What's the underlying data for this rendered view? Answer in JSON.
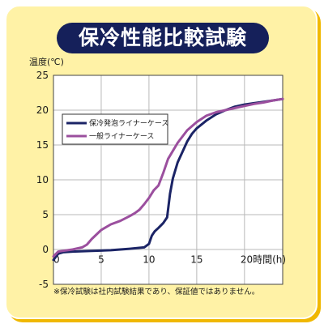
{
  "title": "保冷性能比較試験",
  "footnote": "※保冷試験は社内試験結果であり、保証値ではありません。",
  "colors": {
    "navy": "#1b2466",
    "purple": "#9b4f9e",
    "card": "#fff2a6",
    "grid": "#b9b9b9"
  },
  "chart_data": {
    "type": "line",
    "ylabel": "温度(℃)",
    "xlabel": "時間(h)",
    "xlim": [
      0,
      24
    ],
    "ylim": [
      -5,
      25
    ],
    "xticks": [
      0,
      5,
      10,
      15,
      20
    ],
    "xtick_labels": [
      "0",
      "5",
      "10",
      "15",
      "20時間(h)"
    ],
    "yticks": [
      -5,
      0,
      5,
      10,
      15,
      20,
      25
    ],
    "grid": true,
    "legend_position": "upper-left",
    "series": [
      {
        "name": "保冷発泡ライナーケース",
        "color": "#1b2466",
        "x": [
          0,
          0.5,
          1,
          2,
          4,
          6,
          8,
          9.5,
          10,
          10.3,
          10.6,
          11,
          11.5,
          11.9,
          12.2,
          12.5,
          13,
          13.5,
          14,
          14.5,
          15,
          16,
          17,
          18,
          19,
          20,
          21,
          22,
          23,
          24
        ],
        "y": [
          -1.5,
          -0.6,
          -0.4,
          -0.3,
          -0.2,
          -0.1,
          0.1,
          0.3,
          0.8,
          2.0,
          2.6,
          3.1,
          3.8,
          4.6,
          8.0,
          10.2,
          12.5,
          14.0,
          15.5,
          16.6,
          17.4,
          18.5,
          19.4,
          20.0,
          20.5,
          20.8,
          21.0,
          21.2,
          21.4,
          21.6
        ]
      },
      {
        "name": "一般ライナーケース",
        "color": "#9b4f9e",
        "x": [
          0,
          0.5,
          1,
          2,
          3,
          3.5,
          4,
          5,
          6,
          7,
          8,
          8.5,
          9,
          9.5,
          10,
          10.5,
          11,
          11.5,
          12,
          13,
          14,
          15,
          16,
          17,
          18,
          19,
          20,
          21,
          22,
          23,
          24
        ],
        "y": [
          -1.0,
          -0.3,
          -0.2,
          0.0,
          0.3,
          0.7,
          1.5,
          2.8,
          3.6,
          4.1,
          4.8,
          5.2,
          5.7,
          6.5,
          7.4,
          8.5,
          9.2,
          11.0,
          13.0,
          15.3,
          17.1,
          18.3,
          19.2,
          19.7,
          20.0,
          20.3,
          20.6,
          20.9,
          21.1,
          21.4,
          21.6
        ]
      }
    ]
  }
}
